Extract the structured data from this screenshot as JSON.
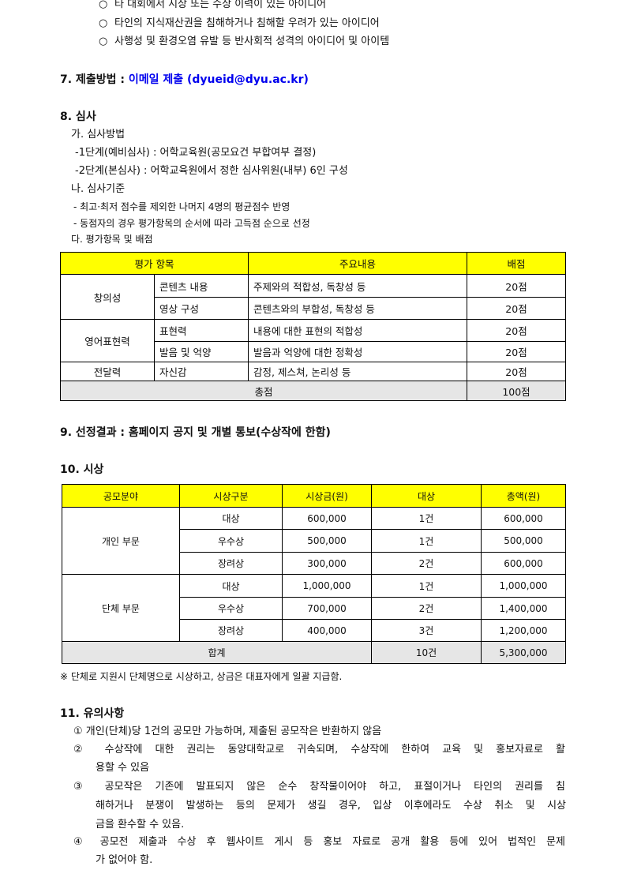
{
  "bullets": [
    "타 대회에서 시상 또는 수상 이력이 있는 아이디어",
    "타인의 지식재산권을 침해하거나 침해할 우려가 있는 아이디어",
    "사행성 및 환경오염 유발 등 반사회적 성격의 아이디어 및 아이템"
  ],
  "bullet_glyph": "○",
  "s7": {
    "label": "7. 제출방법 : ",
    "value": "이메일 제출 (dyueid@dyu.ac.kr)"
  },
  "s8": {
    "title": "8. 심사",
    "a": "가. 심사방법",
    "a1": "-1단계(예비심사) : 어학교육원(공모요건 부합여부 결정)",
    "a2": "-2단계(본심사) : 어학교육원에서 정한 심사위원(내부) 6인 구성",
    "b": "나. 심사기준",
    "b1": "- 최고·최저 점수를 제외한 나머지 4명의 평균점수 반영",
    "b2": "- 동점자의 경우 평가항목의 순서에 따라 고득점 순으로 선정",
    "c": "다. 평가항목 및 배점",
    "table": {
      "headers": [
        "평가 항목",
        "주요내용",
        "배점"
      ],
      "groups": [
        "창의성",
        "영어표현력",
        "전달력"
      ],
      "rows": [
        {
          "item": "콘텐츠 내용",
          "content": "주제와의 적합성, 독창성 등",
          "score": "20점"
        },
        {
          "item": "영상 구성",
          "content": "콘텐츠와의 부합성, 독창성 등",
          "score": "20점"
        },
        {
          "item": "표현력",
          "content": "내용에 대한 표현의 적합성",
          "score": "20점"
        },
        {
          "item": "발음 및 억양",
          "content": "발음과 억양에 대한 정확성",
          "score": "20점"
        },
        {
          "item": "자신감",
          "content": "감정, 제스쳐, 논리성 등",
          "score": "20점"
        }
      ],
      "total_label": "총점",
      "total": "100점"
    }
  },
  "s9": "9. 선정결과 : 홈페이지 공지 및 개별 통보(수상작에 한함)",
  "s10": {
    "title": "10. 시상",
    "headers": [
      "공모분야",
      "시상구분",
      "시상금(원)",
      "대상",
      "총액(원)"
    ],
    "groups": [
      "개인 부문",
      "단체 부문"
    ],
    "rows": [
      [
        "대상",
        "600,000",
        "1건",
        "600,000"
      ],
      [
        "우수상",
        "500,000",
        "1건",
        "500,000"
      ],
      [
        "장려상",
        "300,000",
        "2건",
        "600,000"
      ],
      [
        "대상",
        "1,000,000",
        "1건",
        "1,000,000"
      ],
      [
        "우수상",
        "700,000",
        "2건",
        "1,400,000"
      ],
      [
        "장려상",
        "400,000",
        "3건",
        "1,200,000"
      ]
    ],
    "total_label": "합계",
    "total_count": "10건",
    "total_amount": "5,300,000",
    "note": "※ 단체로 지원시 단체명으로 시상하고, 상금은 대표자에게 일괄 지급함."
  },
  "s11": {
    "title": "11. 유의사항",
    "items": [
      [
        "① 개인(단체)당 1건의 공모만 가능하며, 제출된 공모작은 반환하지 않음"
      ],
      [
        "② 수상작에 대한 권리는 동양대학교로 귀속되며, 수상작에 한하여 교육 및 홍보자료로 활",
        "용할 수 있음"
      ],
      [
        "③ 공모작은 기존에 발표되지 않은 순수 창작물이어야 하고, 표절이거나 타인의 권리를 침",
        "해하거나 분쟁이 발생하는 등의 문제가 생길 경우, 입상 이후에라도 수상 취소 및 시상",
        "금을 환수할 수 있음."
      ],
      [
        "④ 공모전 제출과 수상 후 웹사이트 게시 등 홍보 자료로 공개 활용 등에 있어 법적인 문제",
        "가 없어야 함."
      ]
    ]
  },
  "colors": {
    "header_yellow": "#ffff00",
    "total_gray": "#e6e6e6",
    "email_blue": "#0000ee"
  }
}
